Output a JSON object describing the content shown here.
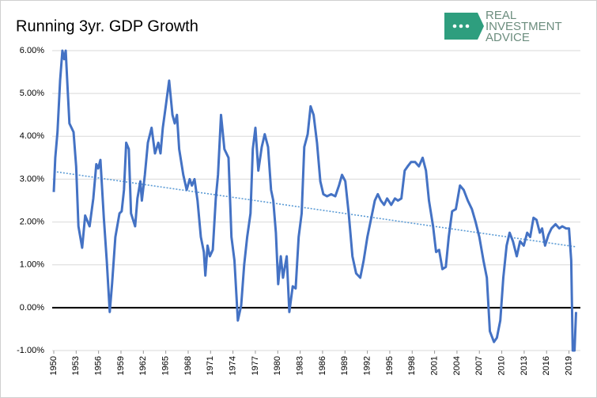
{
  "chart_data": {
    "type": "line",
    "title": "Running 3yr. GDP Growth",
    "logo": [
      "REAL",
      "INVESTMENT",
      "ADVICE"
    ],
    "x": [
      1950,
      1950.2,
      1950.5,
      1950.85,
      1951.15,
      1951.4,
      1951.6,
      1951.8,
      1952.1,
      1952.65,
      1953,
      1953.3,
      1953.8,
      1954.2,
      1954.8,
      1955.3,
      1955.7,
      1955.95,
      1956.25,
      1956.7,
      1957.1,
      1957.5,
      1957.8,
      1958.25,
      1958.8,
      1959.1,
      1959.4,
      1959.7,
      1960.05,
      1960.35,
      1960.9,
      1961.2,
      1961.6,
      1961.8,
      1962.2,
      1962.6,
      1963.1,
      1963.55,
      1964,
      1964.3,
      1964.6,
      1965,
      1965.45,
      1965.9,
      1966.2,
      1966.5,
      1966.8,
      1967.35,
      1967.8,
      1968.2,
      1968.5,
      1968.85,
      1969.25,
      1969.7,
      1970.1,
      1970.3,
      1970.6,
      1970.9,
      1971.3,
      1971.7,
      1972,
      1972.4,
      1972.85,
      1973.4,
      1973.8,
      1974.2,
      1974.65,
      1975.1,
      1975.5,
      1975.9,
      1976.35,
      1976.65,
      1977,
      1977.4,
      1977.85,
      1978.25,
      1978.7,
      1979.1,
      1979.4,
      1979.75,
      1980.05,
      1980.4,
      1980.7,
      1981.2,
      1981.55,
      1982,
      1982.4,
      1982.8,
      1983.2,
      1983.55,
      1984,
      1984.4,
      1984.8,
      1985.25,
      1985.7,
      1986.1,
      1986.6,
      1987.15,
      1987.7,
      1988.2,
      1988.6,
      1989.05,
      1989.5,
      1990,
      1990.5,
      1991.05,
      1991.5,
      1992,
      1992.65,
      1993,
      1993.4,
      1993.8,
      1994.25,
      1994.65,
      1995.2,
      1995.7,
      1996.1,
      1996.55,
      1997,
      1997.4,
      1997.85,
      1998.4,
      1998.9,
      1999.4,
      1999.85,
      2000.25,
      2000.8,
      2001.2,
      2001.6,
      2002.05,
      2002.5,
      2002.9,
      2003.35,
      2003.85,
      2004.4,
      2004.9,
      2005.45,
      2006,
      2006.5,
      2007,
      2007.55,
      2008,
      2008.4,
      2008.95,
      2009.35,
      2009.8,
      2010.2,
      2010.65,
      2011.05,
      2011.5,
      2012,
      2012.45,
      2012.95,
      2013.4,
      2013.8,
      2014.25,
      2014.65,
      2015.1,
      2015.4,
      2015.8,
      2016.25,
      2016.65,
      2017.2,
      2017.7,
      2018.1,
      2018.6,
      2019,
      2019.3,
      2019.5,
      2019.75,
      2019.95
    ],
    "series": [
      {
        "color": "#4472c4",
        "values": [
          2.7,
          3.5,
          4.1,
          5.3,
          6.0,
          5.8,
          6.0,
          5.3,
          4.3,
          4.1,
          3.3,
          1.9,
          1.4,
          2.15,
          1.9,
          2.55,
          3.35,
          3.25,
          3.45,
          2.1,
          1.1,
          -0.1,
          0.55,
          1.65,
          2.2,
          2.25,
          2.75,
          3.85,
          3.7,
          2.2,
          1.9,
          2.55,
          2.95,
          2.5,
          3.1,
          3.85,
          4.2,
          3.6,
          3.85,
          3.6,
          4.2,
          4.7,
          5.3,
          4.5,
          4.3,
          4.5,
          3.7,
          3.1,
          2.75,
          3.0,
          2.85,
          3.0,
          2.5,
          1.65,
          1.3,
          0.75,
          1.45,
          1.2,
          1.35,
          2.55,
          3.1,
          4.5,
          3.7,
          3.5,
          1.65,
          1.1,
          -0.3,
          0.05,
          1.0,
          1.65,
          2.2,
          3.7,
          4.2,
          3.2,
          3.75,
          4.05,
          3.75,
          2.75,
          2.5,
          1.75,
          0.55,
          1.2,
          0.7,
          1.2,
          -0.1,
          0.5,
          0.45,
          1.65,
          2.2,
          3.75,
          4.05,
          4.7,
          4.5,
          3.85,
          2.95,
          2.65,
          2.6,
          2.65,
          2.6,
          2.85,
          3.1,
          2.95,
          2.2,
          1.2,
          0.8,
          0.7,
          1.1,
          1.65,
          2.2,
          2.5,
          2.65,
          2.5,
          2.4,
          2.55,
          2.4,
          2.55,
          2.5,
          2.55,
          3.2,
          3.3,
          3.4,
          3.4,
          3.3,
          3.5,
          3.2,
          2.5,
          1.9,
          1.3,
          1.35,
          0.9,
          0.95,
          1.65,
          2.25,
          2.3,
          2.85,
          2.75,
          2.5,
          2.3,
          2.0,
          1.65,
          1.1,
          0.7,
          -0.55,
          -0.8,
          -0.7,
          -0.3,
          0.7,
          1.45,
          1.75,
          1.55,
          1.2,
          1.55,
          1.45,
          1.75,
          1.65,
          2.1,
          2.05,
          1.75,
          1.85,
          1.45,
          1.7,
          1.85,
          1.95,
          1.85,
          1.9,
          1.85,
          1.85,
          1.1,
          -1.0,
          -1.0,
          -0.1
        ]
      }
    ],
    "trendline": {
      "x": [
        1950,
        2020
      ],
      "values": [
        3.18,
        1.42
      ],
      "color": "#5b9bd5"
    },
    "xlim": [
      1950,
      2020
    ],
    "xticks": [
      1950,
      1953,
      1956,
      1959,
      1962,
      1965,
      1968,
      1971,
      1974,
      1977,
      1980,
      1983,
      1986,
      1989,
      1992,
      1995,
      1998,
      2001,
      2004,
      2007,
      2010,
      2013,
      2016,
      2019
    ],
    "ylim": [
      -1,
      6
    ],
    "yticks": [
      {
        "value": -1,
        "label": "-1.00%"
      },
      {
        "value": 0,
        "label": "0.00%"
      },
      {
        "value": 1,
        "label": "1.00%"
      },
      {
        "value": 2,
        "label": "2.00%"
      },
      {
        "value": 3,
        "label": "3.00%"
      },
      {
        "value": 4,
        "label": "4.00%"
      },
      {
        "value": 5,
        "label": "5.00%"
      },
      {
        "value": 6,
        "label": "6.00%"
      }
    ],
    "grid": true
  }
}
